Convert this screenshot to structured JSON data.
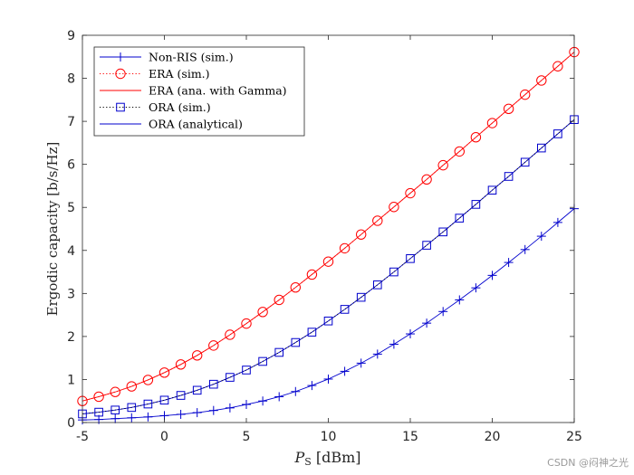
{
  "chart_data": {
    "type": "line",
    "xlabel_main": "P",
    "xlabel_sub": "S",
    "xlabel_unit": "[dBm]",
    "ylabel": "Ergodic capacity [b/s/Hz]",
    "xlim": [
      -5,
      25
    ],
    "ylim": [
      0,
      9
    ],
    "xticks": [
      -5,
      0,
      5,
      10,
      15,
      20,
      25
    ],
    "yticks": [
      0,
      1,
      2,
      3,
      4,
      5,
      6,
      7,
      8,
      9
    ],
    "grid": false,
    "legend_position": "top-left",
    "x": [
      -5,
      -4,
      -3,
      -2,
      -1,
      0,
      1,
      2,
      3,
      4,
      5,
      6,
      7,
      8,
      9,
      10,
      11,
      12,
      13,
      14,
      15,
      16,
      17,
      18,
      19,
      20,
      21,
      22,
      23,
      24,
      25
    ],
    "series": [
      {
        "name": "Non-RIS (sim.)",
        "color": "#0000cd",
        "line": "solid",
        "marker": "plus",
        "values": [
          0.06,
          0.07,
          0.09,
          0.11,
          0.13,
          0.16,
          0.19,
          0.23,
          0.28,
          0.34,
          0.42,
          0.5,
          0.6,
          0.72,
          0.86,
          1.01,
          1.19,
          1.38,
          1.59,
          1.82,
          2.06,
          2.31,
          2.58,
          2.85,
          3.13,
          3.42,
          3.72,
          4.02,
          4.33,
          4.65,
          4.97
        ]
      },
      {
        "name": "ERA (sim.)",
        "color": "#ff0000",
        "line": "dotted",
        "marker": "circle",
        "values": [
          0.5,
          0.6,
          0.71,
          0.84,
          0.99,
          1.16,
          1.35,
          1.56,
          1.79,
          2.04,
          2.3,
          2.57,
          2.85,
          3.14,
          3.44,
          3.74,
          4.05,
          4.37,
          4.69,
          5.01,
          5.33,
          5.65,
          5.98,
          6.3,
          6.63,
          6.96,
          7.29,
          7.62,
          7.95,
          8.28,
          8.61
        ]
      },
      {
        "name": "ERA (ana. with Gamma)",
        "color": "#ff0000",
        "line": "solid",
        "marker": "none",
        "values": [
          0.5,
          0.6,
          0.71,
          0.84,
          0.99,
          1.16,
          1.35,
          1.56,
          1.79,
          2.04,
          2.3,
          2.57,
          2.85,
          3.14,
          3.44,
          3.74,
          4.05,
          4.37,
          4.69,
          5.01,
          5.33,
          5.65,
          5.98,
          6.3,
          6.63,
          6.96,
          7.29,
          7.62,
          7.95,
          8.28,
          8.61
        ]
      },
      {
        "name": "ORA (sim.)",
        "color": "#000000",
        "line": "dotted",
        "marker": "square",
        "marker_color": "#0000cd",
        "values": [
          0.2,
          0.24,
          0.29,
          0.35,
          0.43,
          0.52,
          0.63,
          0.75,
          0.89,
          1.05,
          1.22,
          1.42,
          1.63,
          1.86,
          2.1,
          2.36,
          2.63,
          2.91,
          3.2,
          3.5,
          3.81,
          4.12,
          4.43,
          4.75,
          5.07,
          5.4,
          5.72,
          6.05,
          6.38,
          6.71,
          7.04
        ]
      },
      {
        "name": "ORA (analytical)",
        "color": "#0000cd",
        "line": "solid",
        "marker": "none",
        "values": [
          0.2,
          0.24,
          0.29,
          0.35,
          0.43,
          0.52,
          0.63,
          0.75,
          0.89,
          1.05,
          1.22,
          1.42,
          1.63,
          1.86,
          2.1,
          2.36,
          2.63,
          2.91,
          3.2,
          3.5,
          3.81,
          4.12,
          4.43,
          4.75,
          5.07,
          5.4,
          5.72,
          6.05,
          6.38,
          6.71,
          7.04
        ]
      }
    ]
  },
  "watermark": "CSDN @闷神之光"
}
